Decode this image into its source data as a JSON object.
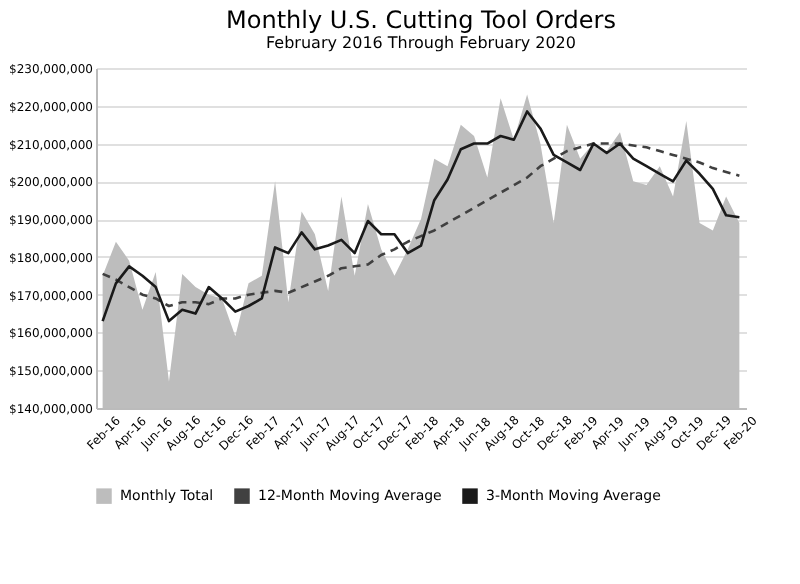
{
  "chart_data": {
    "type": "line",
    "title": "Monthly U.S. Cutting Tool Orders",
    "subtitle": "February 2016 Through February 2020",
    "categories": [
      "Feb-16",
      null,
      "Apr-16",
      null,
      "Jun-16",
      null,
      "Aug-16",
      null,
      "Oct-16",
      null,
      "Dec-16",
      null,
      "Feb-17",
      null,
      "Apr-17",
      null,
      "Jun-17",
      null,
      "Aug-17",
      null,
      "Oct-17",
      null,
      "Dec-17",
      null,
      "Feb-18",
      null,
      "Apr-18",
      null,
      "Jun-18",
      null,
      "Aug-18",
      null,
      "Oct-18",
      null,
      "Dec-18",
      null,
      "Feb-19",
      null,
      "Apr-19",
      null,
      "Jun-19",
      null,
      "Aug-19",
      null,
      "Oct-19",
      null,
      "Dec-19",
      null,
      "Feb-20"
    ],
    "series": [
      {
        "name": "Monthly Total",
        "type": "area",
        "color": "#bdbdbd",
        "values": [
          175000000,
          184000000,
          179000000,
          166000000,
          176000000,
          147000000,
          175500000,
          172000000,
          170000000,
          169000000,
          159000000,
          173000000,
          175000000,
          200000000,
          168000000,
          192000000,
          186000000,
          171000000,
          196000000,
          175000000,
          194000000,
          182000000,
          175000000,
          182000000,
          190000000,
          206000000,
          204000000,
          215000000,
          212000000,
          201000000,
          222000000,
          211000000,
          223000000,
          210000000,
          189000000,
          215000000,
          206000000,
          210000000,
          208000000,
          213000000,
          200000000,
          199000000,
          204000000,
          196000000,
          216000000,
          189000000,
          187000000,
          196000000,
          189000000
        ]
      },
      {
        "name": "12-Month Moving Average",
        "line_style": "dashed",
        "color": "#404040",
        "values": [
          175500000,
          174000000,
          172000000,
          170000000,
          169000000,
          167000000,
          168000000,
          168000000,
          167500000,
          169000000,
          169000000,
          170000000,
          170500000,
          171000000,
          170500000,
          172000000,
          173500000,
          175000000,
          177000000,
          177500000,
          178000000,
          180500000,
          182000000,
          184000000,
          185500000,
          187000000,
          189000000,
          191000000,
          193000000,
          195000000,
          197000000,
          199000000,
          201000000,
          204000000,
          206000000,
          208000000,
          209000000,
          210000000,
          210000000,
          210000000,
          209500000,
          209000000,
          208000000,
          207000000,
          206000000,
          205000000,
          203500000,
          202500000,
          201500000
        ]
      },
      {
        "name": "3-Month Moving Average",
        "line_style": "solid",
        "color": "#1a1a1a",
        "values": [
          163000000,
          173000000,
          177500000,
          175000000,
          172000000,
          163000000,
          166000000,
          165000000,
          172000000,
          169000000,
          165500000,
          167000000,
          169000000,
          182500000,
          181000000,
          186500000,
          182000000,
          183000000,
          184500000,
          181000000,
          189500000,
          186000000,
          186000000,
          181000000,
          183000000,
          195000000,
          200500000,
          208500000,
          210000000,
          210000000,
          212000000,
          211000000,
          218500000,
          214000000,
          207000000,
          205000000,
          203000000,
          210000000,
          207500000,
          210000000,
          206000000,
          204000000,
          202000000,
          200000000,
          205500000,
          202000000,
          198000000,
          191000000,
          190500000
        ]
      }
    ],
    "ylim": [
      140000000,
      230000000
    ],
    "yticks": [
      {
        "value": 140000000,
        "label": "$140,000,000"
      },
      {
        "value": 150000000,
        "label": "$150,000,000"
      },
      {
        "value": 160000000,
        "label": "$160,000,000"
      },
      {
        "value": 170000000,
        "label": "$170,000,000"
      },
      {
        "value": 180000000,
        "label": "$180,000,000"
      },
      {
        "value": 190000000,
        "label": "$190,000,000"
      },
      {
        "value": 200000000,
        "label": "$200,000,000"
      },
      {
        "value": 210000000,
        "label": "$210,000,000"
      },
      {
        "value": 220000000,
        "label": "$220,000,000"
      },
      {
        "value": 230000000,
        "label": "$230,000,000"
      }
    ],
    "grid": "y",
    "legend": "bottom"
  }
}
